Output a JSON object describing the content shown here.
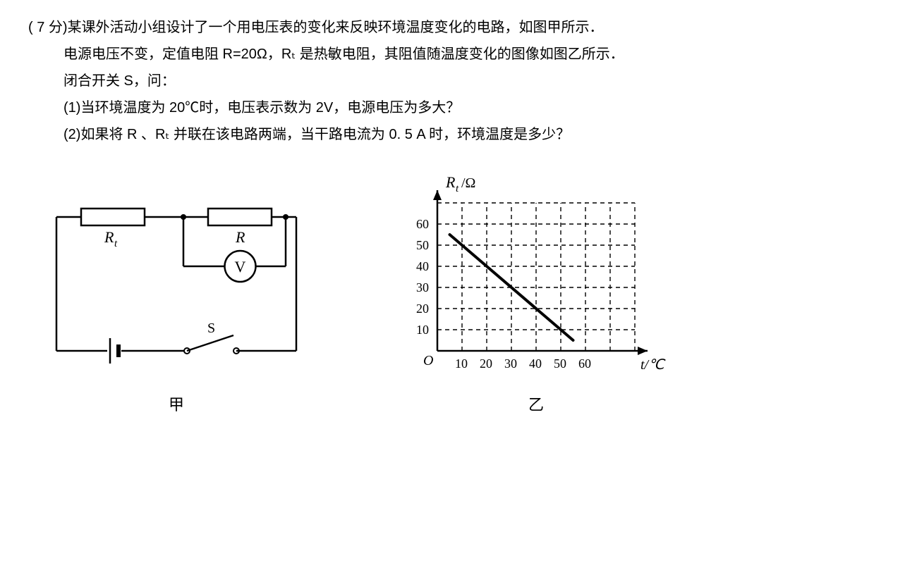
{
  "problem": {
    "points_prefix": "( 7 分)",
    "line1": "某课外活动小组设计了一个用电压表的变化来反映环境温度变化的电路，如图甲所示．",
    "line2": "电源电压不变，定值电阻 R=20Ω，Rₜ 是热敏电阻，其阻值随温度变化的图像如图乙所示．",
    "line3": "闭合开关 S，问：",
    "q1": "(1)当环境温度为 20℃时，电压表示数为 2V，电源电压为多大？",
    "q2": "(2)如果将 R 、Rₜ 并联在该电路两端，当干路电流为 0. 5 A 时，环境温度是多少？"
  },
  "circuit": {
    "label": "甲",
    "rt_label": "R",
    "rt_sub": "t",
    "r_label": "R",
    "v_label": "V",
    "s_label": "S",
    "stroke": "#000000",
    "stroke_width": 2.5
  },
  "graph": {
    "label": "乙",
    "y_axis_label": "R",
    "y_axis_sub": "t",
    "y_axis_unit": "/Ω",
    "x_axis_label": "t/℃",
    "origin_label": "O",
    "y_ticks": [
      10,
      20,
      30,
      40,
      50,
      60
    ],
    "x_ticks": [
      10,
      20,
      30,
      40,
      50,
      60
    ],
    "x_range": [
      0,
      80
    ],
    "y_range": [
      0,
      75
    ],
    "grid_x_count": 8,
    "grid_y_count": 7,
    "line_points": [
      [
        5,
        55
      ],
      [
        55,
        5
      ]
    ],
    "axis_color": "#000000",
    "axis_width": 2.5,
    "grid_color": "#000000",
    "grid_dash": "6,5",
    "grid_width": 1.4,
    "line_color": "#000000",
    "line_width": 4,
    "tick_fontsize": 18
  }
}
